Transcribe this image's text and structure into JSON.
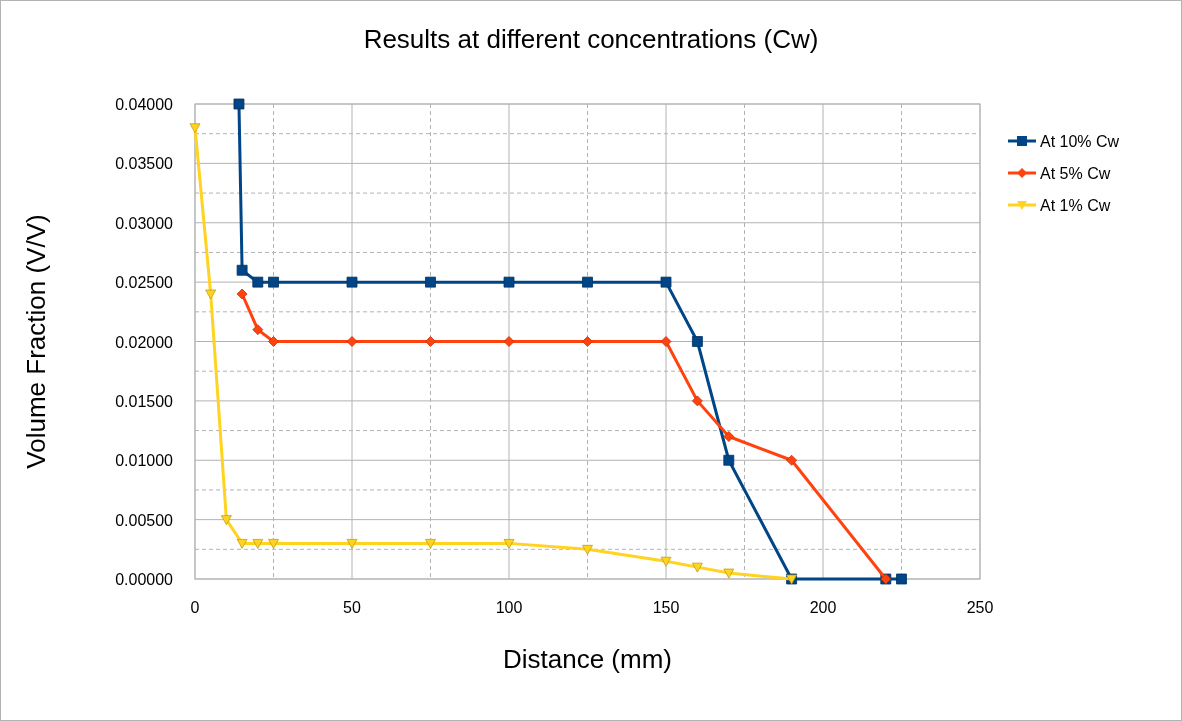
{
  "chart_data": {
    "type": "line",
    "title": "Results at different concentrations (Cw)",
    "xlabel": "Distance (mm)",
    "ylabel": "Volume Fraction (V/V)",
    "xlim": [
      0,
      250
    ],
    "xticks": [
      0,
      50,
      100,
      150,
      200,
      250
    ],
    "ylim": [
      0,
      0.04
    ],
    "yticks": [
      {
        "value": 0,
        "label": "0.00000"
      },
      {
        "value": 0.005,
        "label": "0.00500"
      },
      {
        "value": 0.01,
        "label": "0.01000"
      },
      {
        "value": 0.015,
        "label": "0.01500"
      },
      {
        "value": 0.02,
        "label": "0.02000"
      },
      {
        "value": 0.025,
        "label": "0.02500"
      },
      {
        "value": 0.03,
        "label": "0.03000"
      },
      {
        "value": 0.035,
        "label": "0.03500"
      },
      {
        "value": 0.04,
        "label": "0.04000"
      }
    ],
    "grid": true,
    "legend": "right",
    "series": [
      {
        "name": "At 10% Cw",
        "color": "#004586",
        "marker": "square",
        "x": [
          14,
          15,
          20,
          25,
          50,
          75,
          100,
          125,
          150,
          160,
          170,
          190,
          220,
          225
        ],
        "values": [
          0.04,
          0.026,
          0.025,
          0.025,
          0.025,
          0.025,
          0.025,
          0.025,
          0.025,
          0.02,
          0.01,
          0,
          0,
          0
        ]
      },
      {
        "name": "At 5% Cw",
        "color": "#ff420e",
        "marker": "diamond",
        "x": [
          15,
          20,
          25,
          50,
          75,
          100,
          125,
          150,
          160,
          170,
          190,
          220
        ],
        "values": [
          0.024,
          0.021,
          0.02,
          0.02,
          0.02,
          0.02,
          0.02,
          0.02,
          0.015,
          0.012,
          0.01,
          0
        ]
      },
      {
        "name": "At 1% Cw",
        "color": "#ffd320",
        "marker": "triangle",
        "x": [
          0,
          5,
          10,
          15,
          20,
          25,
          50,
          75,
          100,
          125,
          150,
          160,
          170,
          190
        ],
        "values": [
          0.038,
          0.024,
          0.005,
          0.003,
          0.003,
          0.003,
          0.003,
          0.003,
          0.003,
          0.0025,
          0.0015,
          0.001,
          0.0005,
          0
        ]
      }
    ]
  }
}
